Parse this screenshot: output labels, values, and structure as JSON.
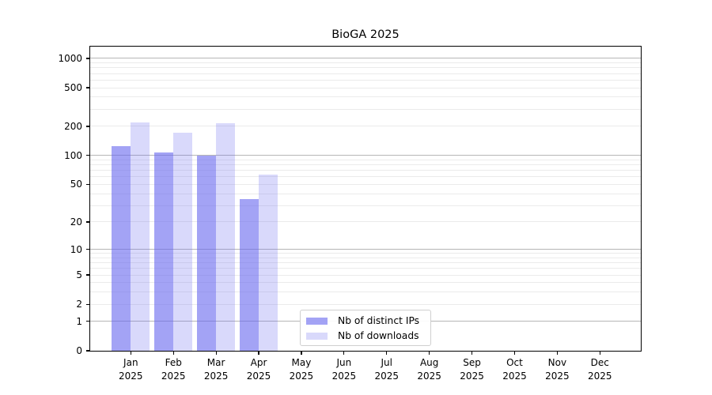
{
  "chart_data": {
    "type": "bar",
    "title": "BioGA 2025",
    "categories": [
      "Jan",
      "Feb",
      "Mar",
      "Apr",
      "May",
      "Jun",
      "Jul",
      "Aug",
      "Sep",
      "Oct",
      "Nov",
      "Dec"
    ],
    "category_year": "2025",
    "series": [
      {
        "name": "Nb of distinct IPs",
        "color": "#6666ee",
        "alpha": 0.6,
        "css": "rgba(102,102,238,0.6)",
        "values": [
          125,
          107,
          100,
          35,
          0,
          0,
          0,
          0,
          0,
          0,
          0,
          0
        ]
      },
      {
        "name": "Nb of downloads",
        "color": "#6666ee",
        "alpha": 0.25,
        "css": "rgba(102,102,238,0.25)",
        "values": [
          218,
          172,
          214,
          63,
          0,
          0,
          0,
          0,
          0,
          0,
          0,
          0
        ]
      }
    ],
    "yscale": "log1p",
    "yticks": [
      0,
      1,
      2,
      5,
      10,
      20,
      50,
      100,
      200,
      500,
      1000
    ],
    "ylim": [
      0,
      1300
    ],
    "grid": {
      "minor_color": "#ebebeb",
      "major_color": "#b6b6b6",
      "major_values": [
        1,
        10,
        100,
        1000
      ]
    },
    "legend_position": "lower-center",
    "xlabel": "",
    "ylabel": ""
  }
}
